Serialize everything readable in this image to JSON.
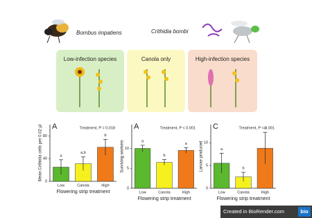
{
  "header": {
    "host": "Bombus impatiens",
    "parasite": "Crithidia bombi"
  },
  "panels": [
    "Low-infection species",
    "Canola only",
    "High-infection species"
  ],
  "footer": {
    "text": "Created in BioRender.com",
    "badge": "bio"
  },
  "chart_data": [
    {
      "type": "bar",
      "panel_label": "A",
      "annotation": "Treatment, P = 0.018",
      "ylabel": "Mean Crithidia cells per 0.02 µl",
      "xlabel": "Flowering strip treatment",
      "categories": [
        "Low",
        "Canola",
        "High"
      ],
      "values": [
        25,
        31,
        60
      ],
      "errors": [
        13,
        12,
        14
      ],
      "letters": [
        "a",
        "a,b",
        "b"
      ],
      "colors": [
        "#5cb82e",
        "#f6f01f",
        "#f07a1a"
      ],
      "ylim": [
        0,
        100
      ],
      "yticks": [
        0,
        40,
        80
      ]
    },
    {
      "type": "bar",
      "panel_label": "A",
      "annotation": "Treatment, P < 0.001",
      "ylabel": "Surviving workers",
      "xlabel": "Flowering strip treatment",
      "categories": [
        "Low",
        "Canola",
        "High"
      ],
      "values": [
        10,
        6.5,
        9.5
      ],
      "errors": [
        0.8,
        0.7,
        0.7
      ],
      "letters": [
        "a",
        "b",
        "a"
      ],
      "colors": [
        "#5cb82e",
        "#f6f01f",
        "#f07a1a"
      ],
      "ylim": [
        0,
        16
      ],
      "yticks": [
        0,
        5,
        10
      ]
    },
    {
      "type": "bar",
      "panel_label": "C",
      "annotation": "Treatment, P < 0.001",
      "ylabel": "Larvae produced",
      "xlabel": "Flowering strip treatment",
      "categories": [
        "Low",
        "Canola",
        "High"
      ],
      "values": [
        5.5,
        2.5,
        8.8
      ],
      "errors": [
        2.2,
        1,
        3.5
      ],
      "letters": [
        "a",
        "b",
        "a"
      ],
      "colors": [
        "#5cb82e",
        "#f6f01f",
        "#f07a1a"
      ],
      "ylim": [
        0,
        14
      ],
      "yticks": [
        0,
        5,
        10
      ]
    }
  ]
}
